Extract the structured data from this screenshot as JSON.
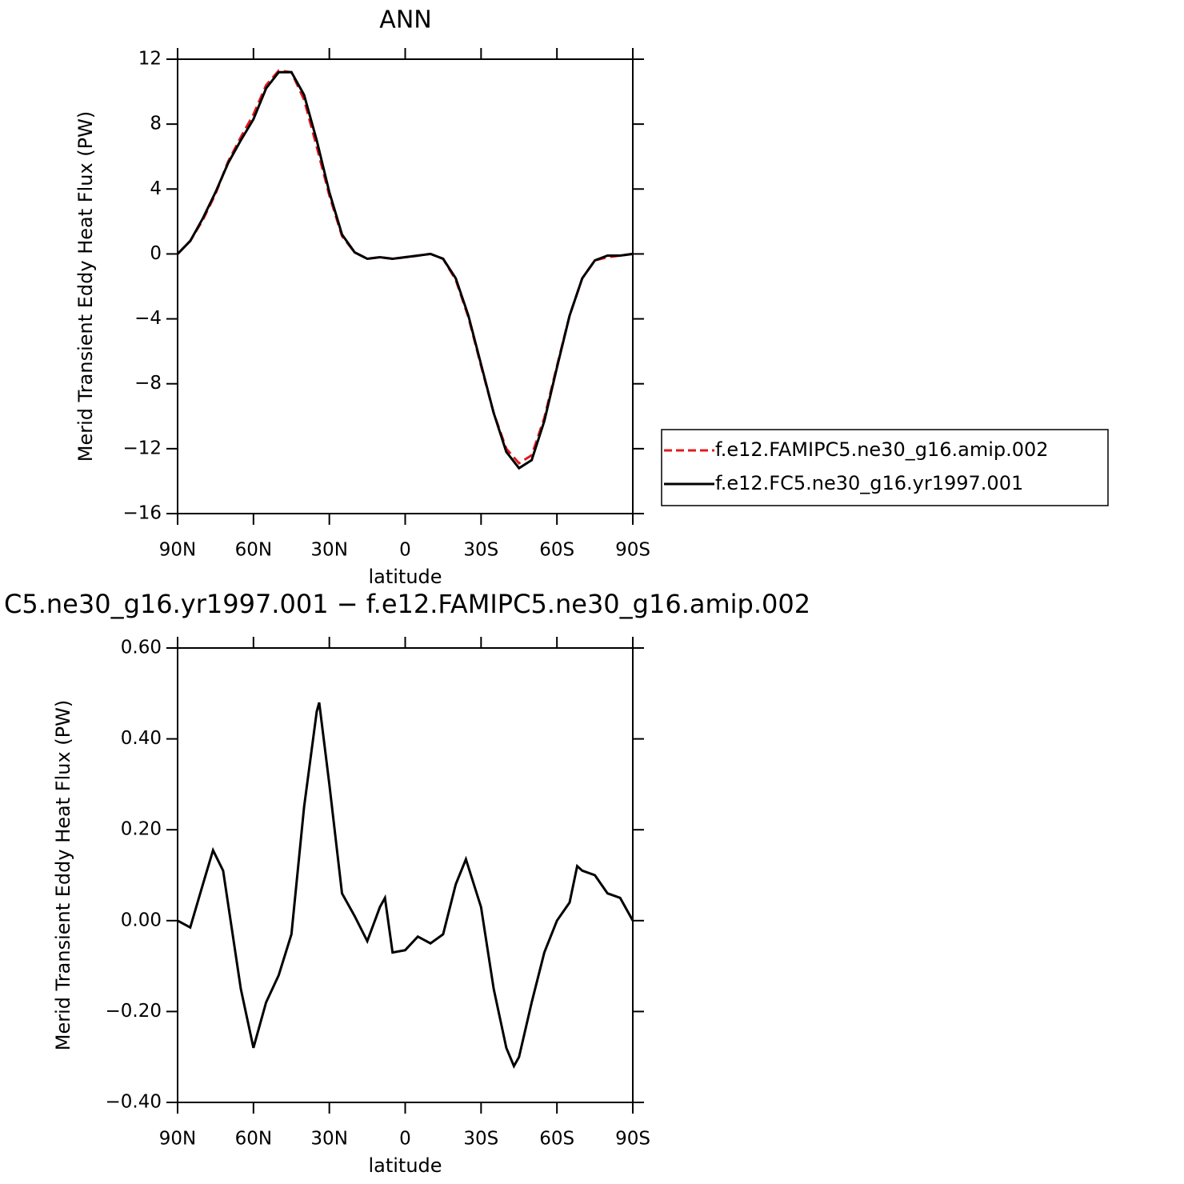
{
  "chart_data": [
    {
      "type": "line",
      "title": "ANN",
      "xlabel": "latitude",
      "ylabel": "Merid Transient Eddy Heat Flux (PW)",
      "x": [
        90,
        85,
        80,
        75,
        70,
        65,
        60,
        55,
        50,
        45,
        40,
        35,
        30,
        25,
        20,
        15,
        10,
        5,
        0,
        -5,
        -10,
        -15,
        -20,
        -25,
        -30,
        -35,
        -40,
        -45,
        -50,
        -55,
        -60,
        -65,
        -70,
        -75,
        -80,
        -85,
        -90
      ],
      "series": [
        {
          "name": "f.e12.FAMIPC5.ne30_g16.amip.002",
          "color": "#e31a1c",
          "style": "dashed",
          "values": [
            0,
            0.8,
            2.1,
            3.7,
            5.7,
            7.2,
            8.6,
            10.4,
            11.3,
            11.2,
            9.5,
            6.6,
            3.6,
            1.1,
            0.1,
            -0.3,
            -0.2,
            -0.3,
            -0.2,
            -0.1,
            0,
            -0.3,
            -1.6,
            -3.9,
            -6.9,
            -9.8,
            -12.0,
            -12.9,
            -12.4,
            -10.1,
            -6.9,
            -3.8,
            -1.5,
            -0.4,
            -0.2,
            -0.1,
            0
          ]
        },
        {
          "name": "f.e12.FC5.ne30_g16.yr1997.001",
          "color": "#000000",
          "style": "solid",
          "values": [
            0,
            0.8,
            2.2,
            3.8,
            5.6,
            7.0,
            8.3,
            10.2,
            11.2,
            11.2,
            9.8,
            7.0,
            3.8,
            1.2,
            0.1,
            -0.3,
            -0.2,
            -0.3,
            -0.2,
            -0.1,
            0,
            -0.3,
            -1.5,
            -3.8,
            -6.8,
            -9.8,
            -12.2,
            -13.2,
            -12.7,
            -10.3,
            -7.0,
            -3.8,
            -1.5,
            -0.4,
            -0.1,
            -0.1,
            0
          ]
        }
      ],
      "xlim": [
        90,
        -90
      ],
      "xticks": [
        {
          "value": 90,
          "label": "90N"
        },
        {
          "value": 60,
          "label": "60N"
        },
        {
          "value": 30,
          "label": "30N"
        },
        0,
        {
          "value": -30,
          "label": "30S"
        },
        {
          "value": -60,
          "label": "60S"
        },
        {
          "value": -90,
          "label": "90S"
        }
      ],
      "ylim": [
        -16,
        12
      ],
      "yticks": [
        {
          "value": -16,
          "label": "−16"
        },
        {
          "value": -12,
          "label": "−12"
        },
        {
          "value": -8,
          "label": "−8"
        },
        {
          "value": -4,
          "label": "−4"
        },
        0,
        4,
        8,
        12
      ],
      "legend": "right"
    },
    {
      "type": "line",
      "title": "C5.ne30_g16.yr1997.001 − f.e12.FAMIPC5.ne30_g16.amip.002",
      "xlabel": "latitude",
      "ylabel": "Merid Transient Eddy Heat Flux (PW)",
      "x": [
        90,
        85,
        80,
        76,
        72,
        65,
        60,
        55,
        50,
        45,
        40,
        35,
        34,
        30,
        25,
        20,
        15,
        10,
        8,
        5,
        0,
        -5,
        -10,
        -15,
        -20,
        -24,
        -30,
        -35,
        -40,
        -43,
        -45,
        -50,
        -55,
        -60,
        -65,
        -68,
        -70,
        -75,
        -80,
        -85,
        -90
      ],
      "series": [
        {
          "color": "#000000",
          "style": "solid",
          "values": [
            0,
            -0.015,
            0.08,
            0.155,
            0.11,
            -0.15,
            -0.28,
            -0.18,
            -0.12,
            -0.03,
            0.25,
            0.46,
            0.48,
            0.3,
            0.06,
            0.01,
            -0.045,
            0.03,
            0.05,
            -0.07,
            -0.065,
            -0.035,
            -0.05,
            -0.03,
            0.08,
            0.135,
            0.03,
            -0.15,
            -0.28,
            -0.32,
            -0.3,
            -0.18,
            -0.07,
            0.0,
            0.04,
            0.12,
            0.11,
            0.1,
            0.06,
            0.05,
            0.0
          ]
        }
      ],
      "xlim": [
        90,
        -90
      ],
      "xticks": [
        {
          "value": 90,
          "label": "90N"
        },
        {
          "value": 60,
          "label": "60N"
        },
        {
          "value": 30,
          "label": "30N"
        },
        0,
        {
          "value": -30,
          "label": "30S"
        },
        {
          "value": -60,
          "label": "60S"
        },
        {
          "value": -90,
          "label": "90S"
        }
      ],
      "ylim": [
        -0.4,
        0.6
      ],
      "yticks": [
        {
          "value": -0.4,
          "label": "−0.40"
        },
        {
          "value": -0.2,
          "label": "−0.20"
        },
        {
          "value": 0,
          "label": "0.00"
        },
        {
          "value": 0.2,
          "label": "0.20"
        },
        {
          "value": 0.4,
          "label": "0.40"
        },
        {
          "value": 0.6,
          "label": "0.60"
        }
      ]
    }
  ]
}
